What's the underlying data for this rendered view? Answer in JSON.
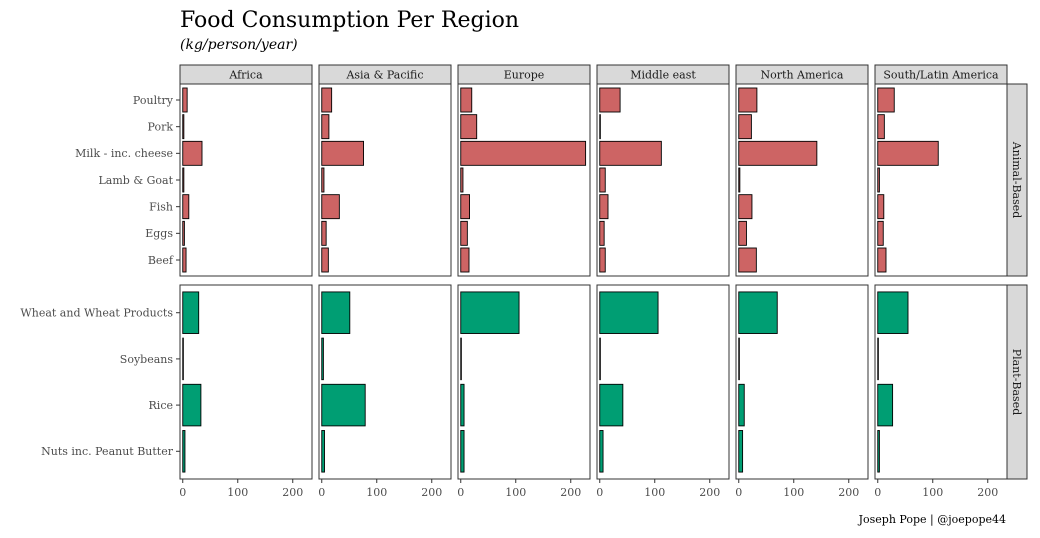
{
  "chart_data": {
    "type": "bar",
    "orientation": "horizontal",
    "title": "Food Consumption Per Region",
    "subtitle": "(kg/person/year)",
    "caption": "Joseph Pope | @joepope44",
    "colors": {
      "Animal-Based": "#cd6464",
      "Plant-Based": "#009e73"
    },
    "x_ticks": [
      0,
      100,
      200
    ],
    "xlim": [
      -5,
      235
    ],
    "regions": [
      "Africa",
      "Asia & Pacific",
      "Europe",
      "Middle east",
      "North America",
      "South/Latin America"
    ],
    "groups": [
      {
        "name": "Animal-Based",
        "categories": [
          "Poultry",
          "Pork",
          "Milk - inc. cheese",
          "Lamb & Goat",
          "Fish",
          "Eggs",
          "Beef"
        ],
        "values": {
          "Africa": [
            8,
            2,
            35,
            2,
            11,
            3,
            6
          ],
          "Asia & Pacific": [
            18,
            13,
            76,
            4,
            32,
            8,
            12
          ],
          "Europe": [
            20,
            29,
            227,
            4,
            16,
            12,
            15
          ],
          "Middle east": [
            37,
            1,
            112,
            10,
            15,
            8,
            10
          ],
          "North America": [
            33,
            23,
            142,
            2,
            24,
            14,
            32
          ],
          "South/Latin America": [
            30,
            12,
            110,
            3,
            11,
            10,
            15
          ]
        }
      },
      {
        "name": "Plant-Based",
        "categories": [
          "Wheat and Wheat Products",
          "Soybeans",
          "Rice",
          "Nuts inc. Peanut Butter"
        ],
        "values": {
          "Africa": [
            29,
            1,
            33,
            4
          ],
          "Asia & Pacific": [
            51,
            3,
            79,
            5
          ],
          "Europe": [
            106,
            1,
            6,
            6
          ],
          "Middle east": [
            106,
            1,
            42,
            6
          ],
          "North America": [
            70,
            1,
            10,
            7
          ],
          "South/Latin America": [
            55,
            1,
            27,
            3
          ]
        }
      }
    ]
  }
}
